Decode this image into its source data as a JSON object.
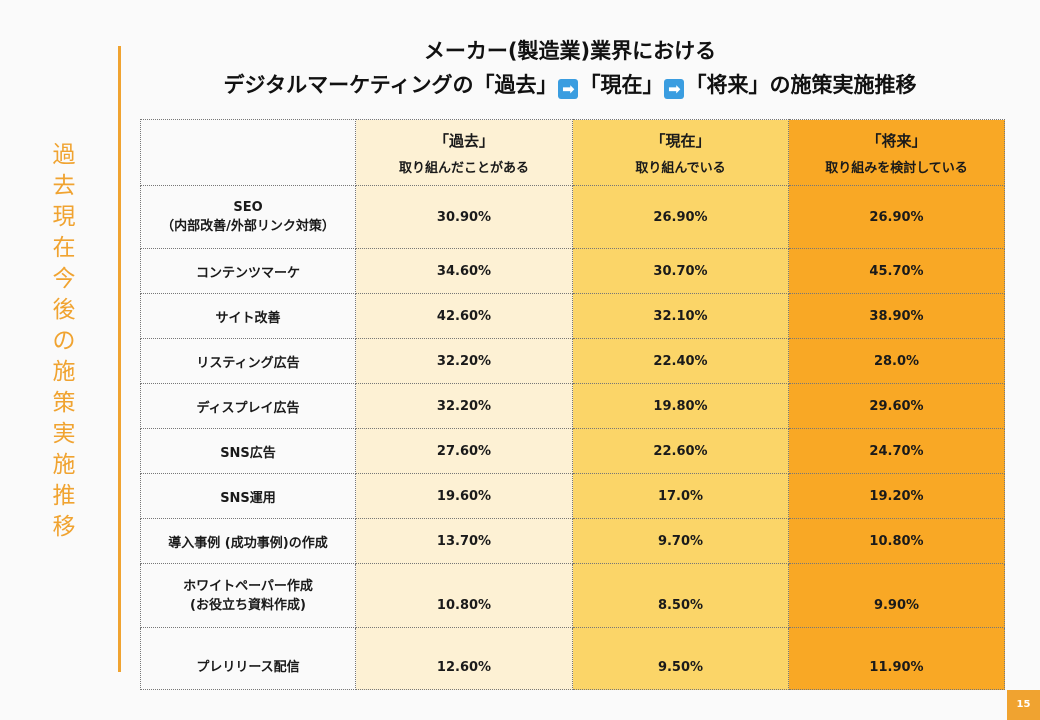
{
  "side_title_chars": [
    "過",
    "去",
    "現",
    "在",
    "今",
    "後",
    "の",
    "施",
    "策",
    "実",
    "施",
    "推",
    "移"
  ],
  "title": {
    "line1": "メーカー(製造業)業界における",
    "line2_part1": "デジタルマーケティングの「過去」",
    "line2_part2": "「現在」",
    "line2_part3": "「将来」の施策実施推移",
    "arrow_glyph": "➡"
  },
  "headers": [
    {
      "name": "「過去」",
      "sub": "取り組んだことがある"
    },
    {
      "name": "「現在」",
      "sub": "取り組んでいる"
    },
    {
      "name": "「将来」",
      "sub": "取り組みを検討している"
    }
  ],
  "rows": [
    {
      "label1": "SEO",
      "label2": "（内部改善/外部リンク対策）",
      "past": "30.90%",
      "now": "26.90%",
      "future": "26.90%"
    },
    {
      "label1": "コンテンツマーケ",
      "label2": "",
      "past": "34.60%",
      "now": "30.70%",
      "future": "45.70%"
    },
    {
      "label1": "サイト改善",
      "label2": "",
      "past": "42.60%",
      "now": "32.10%",
      "future": "38.90%"
    },
    {
      "label1": "リスティング広告",
      "label2": "",
      "past": "32.20%",
      "now": "22.40%",
      "future": "28.0%"
    },
    {
      "label1": "ディスプレイ広告",
      "label2": "",
      "past": "32.20%",
      "now": "19.80%",
      "future": "29.60%"
    },
    {
      "label1": "SNS広告",
      "label2": "",
      "past": "27.60%",
      "now": "22.60%",
      "future": "24.70%"
    },
    {
      "label1": "SNS運用",
      "label2": "",
      "past": "19.60%",
      "now": "17.0%",
      "future": "19.20%"
    },
    {
      "label1": "導入事例 (成功事例)の作成",
      "label2": "",
      "past": "13.70%",
      "now": "9.70%",
      "future": "10.80%"
    },
    {
      "label1": "ホワイトペーパー作成",
      "label2": "(お役立ち資料作成)",
      "past": "10.80%",
      "now": "8.50%",
      "future": "9.90%"
    },
    {
      "label1": "プレリリース配信",
      "label2": "",
      "past": "12.60%",
      "now": "9.50%",
      "future": "11.90%"
    }
  ],
  "page_number": "15"
}
